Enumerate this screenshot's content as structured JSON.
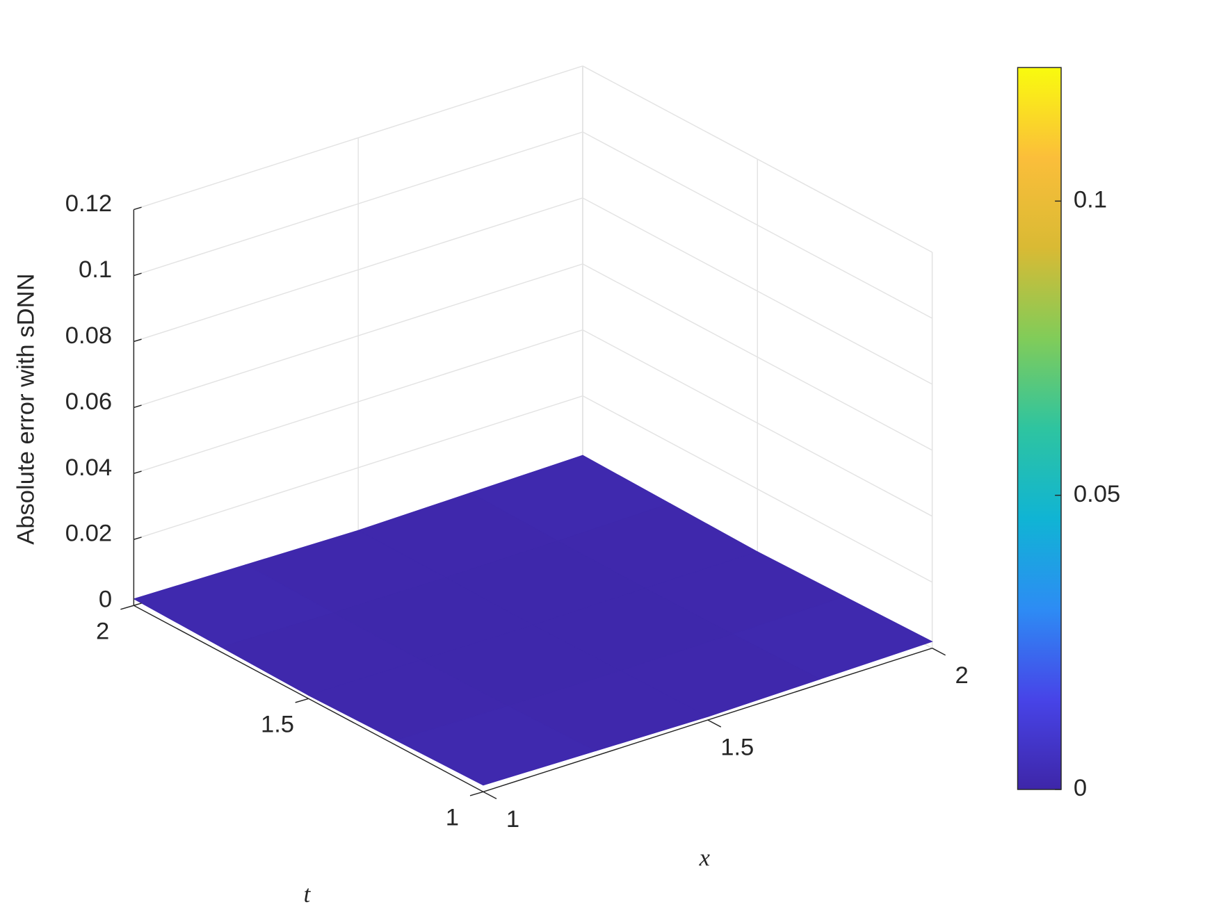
{
  "chart_data": {
    "type": "surface",
    "x": [
      1,
      1.25,
      1.5,
      1.75,
      2
    ],
    "y": [
      1,
      1.25,
      1.5,
      1.75,
      2
    ],
    "z": [
      [
        0.002,
        0.0015,
        0.001,
        0.0015,
        0.002
      ],
      [
        0.0015,
        0.001,
        0.0008,
        0.001,
        0.0015
      ],
      [
        0.001,
        0.0008,
        0.0005,
        0.0008,
        0.001
      ],
      [
        0.0015,
        0.001,
        0.0008,
        0.001,
        0.0015
      ],
      [
        0.002,
        0.0015,
        0.001,
        0.0015,
        0.002
      ]
    ],
    "xlabel": "x",
    "ylabel": "t",
    "zlabel": "Absolute error with sDNN",
    "xlim": [
      1,
      2
    ],
    "ylim": [
      1,
      2
    ],
    "zlim": [
      0,
      0.12
    ],
    "xticks": [
      1,
      1.5,
      2
    ],
    "yticks": [
      1,
      1.5,
      2
    ],
    "zticks": [
      0,
      0.02,
      0.04,
      0.06,
      0.08,
      0.1,
      0.12
    ],
    "clim": [
      0,
      0.1227
    ],
    "cticks": [
      0,
      0.05,
      0.1
    ],
    "colormap": [
      "#3e26a8",
      "#4744e8",
      "#2d8cf4",
      "#10b4d4",
      "#2ec4a0",
      "#81cc59",
      "#d9ba34",
      "#fbbe3a",
      "#f9fb0e"
    ],
    "grid": true,
    "colorbar": true
  }
}
